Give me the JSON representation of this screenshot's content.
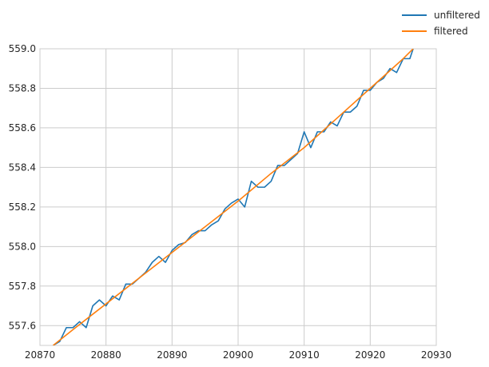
{
  "chart_data": {
    "type": "line",
    "title": "",
    "xlabel": "",
    "ylabel": "",
    "xlim": [
      20870,
      20930
    ],
    "ylim": [
      557.5,
      559.0
    ],
    "xticks": [
      20870,
      20880,
      20890,
      20900,
      20910,
      20920,
      20930
    ],
    "yticks": [
      557.6,
      557.8,
      558.0,
      558.2,
      558.4,
      558.6,
      558.8,
      559.0
    ],
    "xtick_labels": [
      "20870",
      "20880",
      "20890",
      "20900",
      "20910",
      "20920",
      "20930"
    ],
    "ytick_labels": [
      "557.6",
      "557.8",
      "558.0",
      "558.2",
      "558.4",
      "558.6",
      "558.8",
      "559.0"
    ],
    "grid": true,
    "legend_position": "top-right, outside plot area",
    "series": [
      {
        "name": "unfiltered",
        "color": "#1f77b4",
        "x": [
          20872,
          20873,
          20874,
          20875,
          20876,
          20877,
          20878,
          20879,
          20880,
          20881,
          20882,
          20883,
          20884,
          20885,
          20886,
          20887,
          20888,
          20889,
          20890,
          20891,
          20892,
          20893,
          20894,
          20895,
          20896,
          20897,
          20898,
          20899,
          20900,
          20901,
          20902,
          20903,
          20904,
          20905,
          20906,
          20907,
          20908,
          20909,
          20910,
          20911,
          20912,
          20913,
          20914,
          20915,
          20916,
          20917,
          20918,
          20919,
          20920,
          20921,
          20922,
          20923,
          20924,
          20925,
          20926,
          20926.5
        ],
        "y": [
          557.5,
          557.52,
          557.59,
          557.59,
          557.62,
          557.59,
          557.7,
          557.73,
          557.7,
          557.75,
          557.73,
          557.81,
          557.81,
          557.84,
          557.87,
          557.92,
          557.95,
          557.92,
          557.98,
          558.01,
          558.02,
          558.06,
          558.08,
          558.08,
          558.11,
          558.13,
          558.19,
          558.22,
          558.24,
          558.2,
          558.33,
          558.3,
          558.3,
          558.33,
          558.41,
          558.41,
          558.44,
          558.47,
          558.58,
          558.5,
          558.58,
          558.58,
          558.63,
          558.61,
          558.68,
          558.68,
          558.71,
          558.79,
          558.79,
          558.83,
          558.85,
          558.9,
          558.88,
          558.95,
          558.95,
          559.0
        ]
      },
      {
        "name": "filtered",
        "color": "#ff7f0e",
        "x": [
          20872,
          20875,
          20880,
          20885,
          20890,
          20895,
          20900,
          20905,
          20910,
          20915,
          20920,
          20925,
          20926.5
        ],
        "y": [
          557.5,
          557.58,
          557.71,
          557.84,
          557.97,
          558.1,
          558.23,
          558.37,
          558.5,
          558.65,
          558.8,
          558.95,
          559.0
        ]
      }
    ]
  }
}
